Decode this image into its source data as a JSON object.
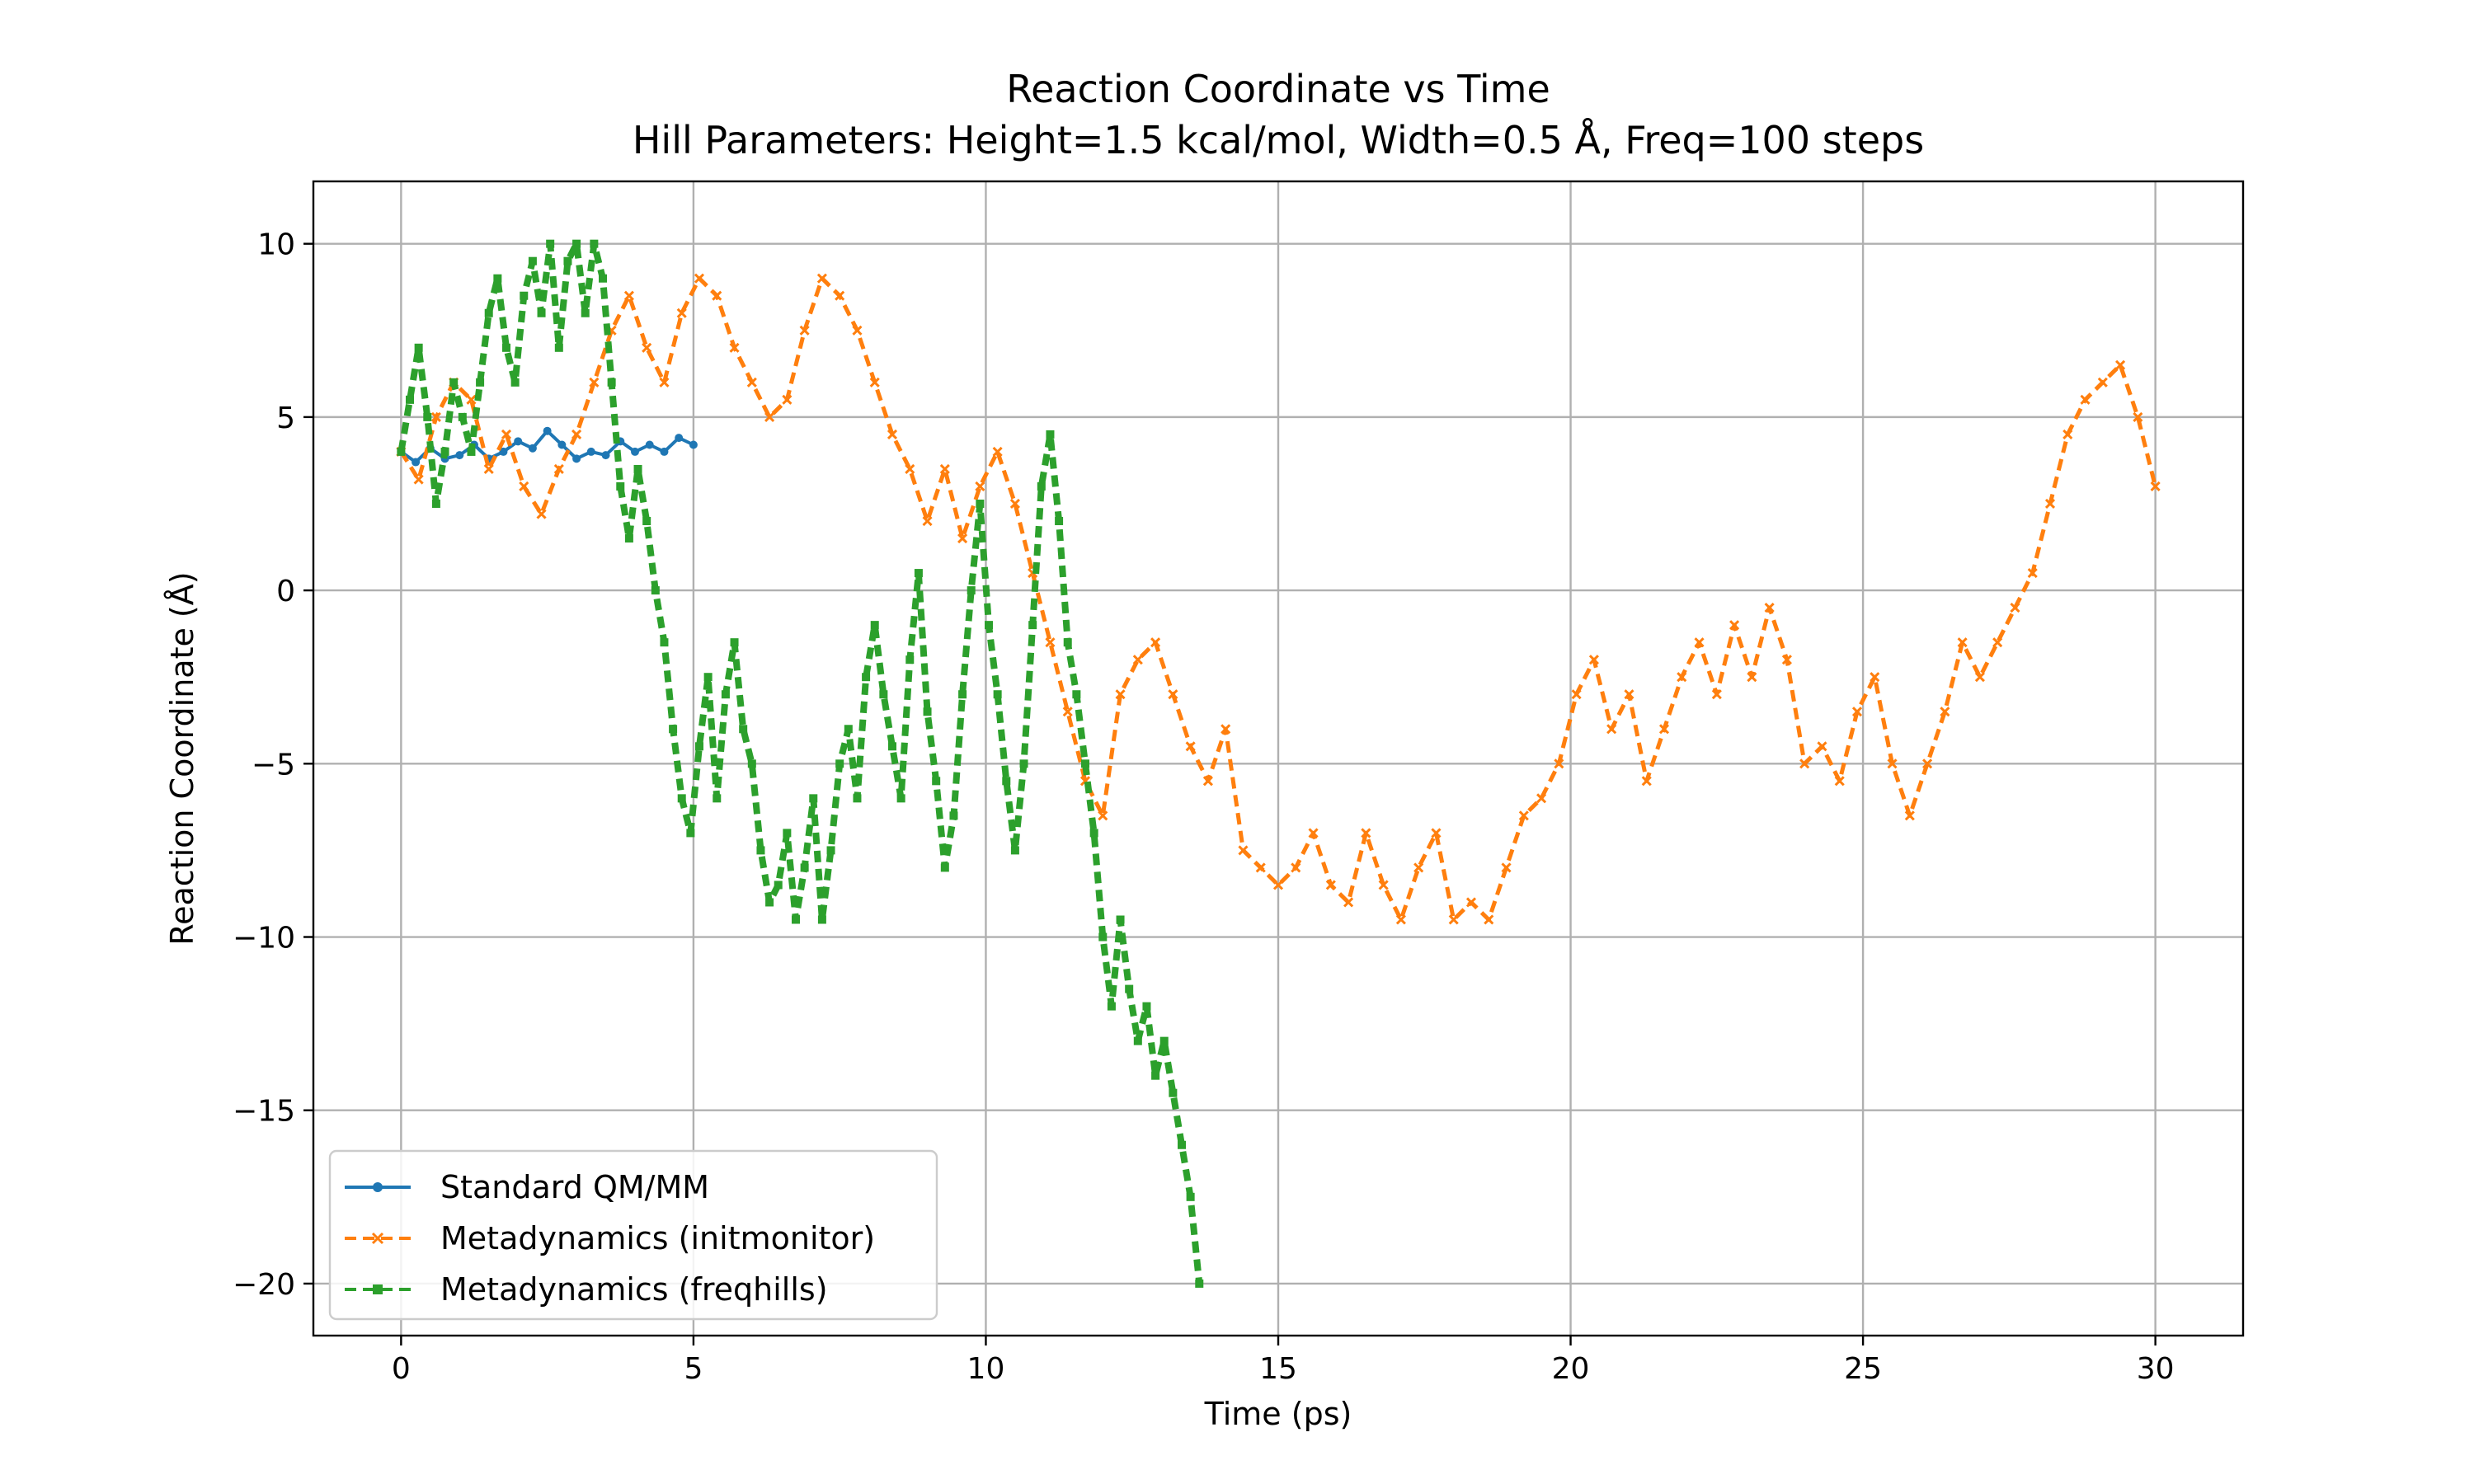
{
  "chart_data": {
    "type": "line",
    "title": "Reaction Coordinate vs Time",
    "subtitle": "Hill Parameters: Height=1.5 kcal/mol, Width=0.5 Å, Freq=100 steps",
    "xlabel": "Time (ps)",
    "ylabel": "Reaction Coordinate (Å)",
    "xlim": [
      -1.5,
      31.5
    ],
    "ylim": [
      -21.5,
      11.8
    ],
    "xticks": [
      0,
      5,
      10,
      15,
      20,
      25,
      30
    ],
    "yticks": [
      10,
      5,
      0,
      -5,
      -10,
      -15,
      -20
    ],
    "xtick_labels": [
      "0",
      "5",
      "10",
      "15",
      "20",
      "25",
      "30"
    ],
    "ytick_labels": [
      "10",
      "5",
      "0",
      "−5",
      "−10",
      "−15",
      "−20"
    ],
    "grid": true,
    "legend_position": "lower-left",
    "series": [
      {
        "name": "Standard QM/MM",
        "color": "#1f77b4",
        "style": "solid",
        "marker": "circle",
        "x": [
          0,
          0.25,
          0.5,
          0.75,
          1.0,
          1.25,
          1.5,
          1.75,
          2.0,
          2.25,
          2.5,
          2.75,
          3.0,
          3.25,
          3.5,
          3.75,
          4.0,
          4.25,
          4.5,
          4.75,
          5.0
        ],
        "y": [
          4.0,
          3.7,
          4.1,
          3.8,
          3.9,
          4.2,
          3.8,
          4.0,
          4.3,
          4.1,
          4.6,
          4.2,
          3.8,
          4.0,
          3.9,
          4.3,
          4.0,
          4.2,
          4.0,
          4.4,
          4.2
        ]
      },
      {
        "name": "Metadynamics (initmonitor)",
        "color": "#ff7f0e",
        "style": "dashed",
        "marker": "x",
        "x": [
          0,
          0.3,
          0.6,
          0.9,
          1.2,
          1.5,
          1.8,
          2.1,
          2.4,
          2.7,
          3.0,
          3.3,
          3.6,
          3.9,
          4.2,
          4.5,
          4.8,
          5.1,
          5.4,
          5.7,
          6.0,
          6.3,
          6.6,
          6.9,
          7.2,
          7.5,
          7.8,
          8.1,
          8.4,
          8.7,
          9.0,
          9.3,
          9.6,
          9.9,
          10.2,
          10.5,
          10.8,
          11.1,
          11.4,
          11.7,
          12.0,
          12.3,
          12.6,
          12.9,
          13.2,
          13.5,
          13.8,
          14.1,
          14.4,
          14.7,
          15.0,
          15.3,
          15.6,
          15.9,
          16.2,
          16.5,
          16.8,
          17.1,
          17.4,
          17.7,
          18.0,
          18.3,
          18.6,
          18.9,
          19.2,
          19.5,
          19.8,
          20.1,
          20.4,
          20.7,
          21.0,
          21.3,
          21.6,
          21.9,
          22.2,
          22.5,
          22.8,
          23.1,
          23.4,
          23.7,
          24.0,
          24.3,
          24.6,
          24.9,
          25.2,
          25.5,
          25.8,
          26.1,
          26.4,
          26.7,
          27.0,
          27.3,
          27.6,
          27.9,
          28.2,
          28.5,
          28.8,
          29.1,
          29.4,
          29.7,
          30.0
        ],
        "y": [
          4.0,
          3.2,
          5.0,
          6.0,
          5.5,
          3.5,
          4.5,
          3.0,
          2.2,
          3.5,
          4.5,
          6.0,
          7.5,
          8.5,
          7.0,
          6.0,
          8.0,
          9.0,
          8.5,
          7.0,
          6.0,
          5.0,
          5.5,
          7.5,
          9.0,
          8.5,
          7.5,
          6.0,
          4.5,
          3.5,
          2.0,
          3.5,
          1.5,
          3.0,
          4.0,
          2.5,
          0.5,
          -1.5,
          -3.5,
          -5.5,
          -6.5,
          -3.0,
          -2.0,
          -1.5,
          -3.0,
          -4.5,
          -5.5,
          -4.0,
          -7.5,
          -8.0,
          -8.5,
          -8.0,
          -7.0,
          -8.5,
          -9.0,
          -7.0,
          -8.5,
          -9.5,
          -8.0,
          -7.0,
          -9.5,
          -9.0,
          -9.5,
          -8.0,
          -6.5,
          -6.0,
          -5.0,
          -3.0,
          -2.0,
          -4.0,
          -3.0,
          -5.5,
          -4.0,
          -2.5,
          -1.5,
          -3.0,
          -1.0,
          -2.5,
          -0.5,
          -2.0,
          -5.0,
          -4.5,
          -5.5,
          -3.5,
          -2.5,
          -5.0,
          -6.5,
          -5.0,
          -3.5,
          -1.5,
          -2.5,
          -1.5,
          -0.5,
          0.5,
          2.5,
          4.5,
          5.5,
          6.0,
          6.5,
          5.0,
          3.0
        ]
      },
      {
        "name": "Metadynamics (freqhills)",
        "color": "#2ca02c",
        "style": "dashed",
        "marker": "square",
        "x": [
          0,
          0.15,
          0.3,
          0.45,
          0.6,
          0.75,
          0.9,
          1.05,
          1.2,
          1.35,
          1.5,
          1.65,
          1.8,
          1.95,
          2.1,
          2.25,
          2.4,
          2.55,
          2.7,
          2.85,
          3.0,
          3.15,
          3.3,
          3.45,
          3.6,
          3.75,
          3.9,
          4.05,
          4.2,
          4.35,
          4.5,
          4.65,
          4.8,
          4.95,
          5.1,
          5.25,
          5.4,
          5.55,
          5.7,
          5.85,
          6.0,
          6.15,
          6.3,
          6.45,
          6.6,
          6.75,
          6.9,
          7.05,
          7.2,
          7.35,
          7.5,
          7.65,
          7.8,
          7.95,
          8.1,
          8.25,
          8.4,
          8.55,
          8.7,
          8.85,
          9.0,
          9.15,
          9.3,
          9.45,
          9.6,
          9.75,
          9.9,
          10.05,
          10.2,
          10.35,
          10.5,
          10.65,
          10.8,
          10.95,
          11.1,
          11.25,
          11.4,
          11.55,
          11.7,
          11.85,
          12.0,
          12.15,
          12.3,
          12.45,
          12.6,
          12.75,
          12.9,
          13.05,
          13.2,
          13.35,
          13.5,
          13.65
        ],
        "y": [
          4.0,
          5.5,
          7.0,
          5.0,
          2.5,
          4.0,
          6.0,
          5.0,
          4.0,
          6.0,
          8.0,
          9.0,
          7.0,
          6.0,
          8.5,
          9.5,
          8.0,
          10.0,
          7.0,
          9.5,
          10.0,
          8.0,
          10.0,
          9.0,
          6.0,
          3.0,
          1.5,
          3.5,
          2.0,
          0.0,
          -1.5,
          -4.0,
          -6.0,
          -7.0,
          -4.5,
          -2.5,
          -6.0,
          -3.0,
          -1.5,
          -4.0,
          -5.0,
          -7.5,
          -9.0,
          -8.5,
          -7.0,
          -9.5,
          -8.0,
          -6.0,
          -9.5,
          -7.5,
          -5.0,
          -4.0,
          -6.0,
          -2.5,
          -1.0,
          -3.0,
          -4.5,
          -6.0,
          -2.0,
          0.5,
          -3.5,
          -5.5,
          -8.0,
          -6.5,
          -3.0,
          0.0,
          2.5,
          -1.0,
          -3.0,
          -5.5,
          -7.5,
          -5.0,
          -1.0,
          3.0,
          4.5,
          2.0,
          -1.5,
          -3.0,
          -5.0,
          -7.0,
          -10.0,
          -12.0,
          -9.5,
          -11.5,
          -13.0,
          -12.0,
          -14.0,
          -13.0,
          -14.5,
          -16.0,
          -17.5,
          -20.0
        ]
      }
    ]
  }
}
